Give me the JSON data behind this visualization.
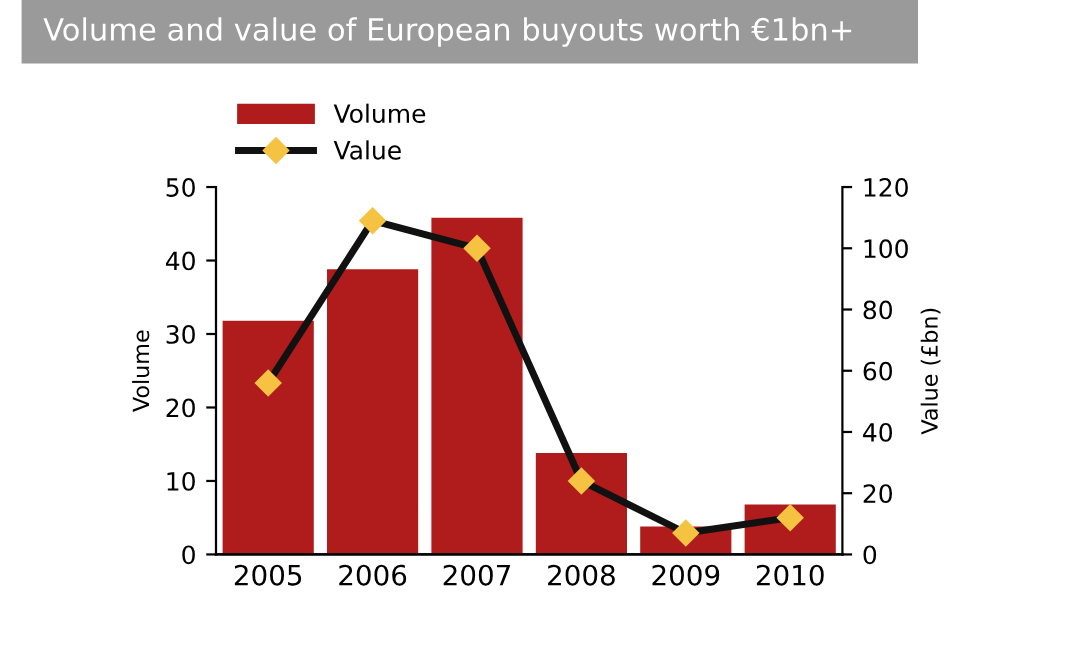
{
  "chart_data": {
    "type": "bar",
    "title": "Volume and value of European buyouts worth €1bn+",
    "categories": [
      "2005",
      "2006",
      "2007",
      "2008",
      "2009",
      "2010"
    ],
    "series": [
      {
        "name": "Volume",
        "color": "#b01c1c",
        "values": [
          32,
          39,
          46,
          14,
          4,
          7
        ]
      },
      {
        "name": "Value",
        "type": "line",
        "axis": "y2",
        "color": "#111111",
        "marker": "diamond",
        "values": [
          56,
          109,
          100,
          24,
          7,
          12
        ]
      }
    ],
    "ylabel": "Volume",
    "y2label": "Value (£bn)",
    "ylim": [
      0,
      50
    ],
    "yticks": [
      0,
      10,
      20,
      30,
      40,
      50
    ],
    "y2lim": [
      0,
      120
    ],
    "y2ticks": [
      0,
      20,
      40,
      60,
      80,
      100,
      120
    ],
    "legend": "top left",
    "grid": false
  }
}
